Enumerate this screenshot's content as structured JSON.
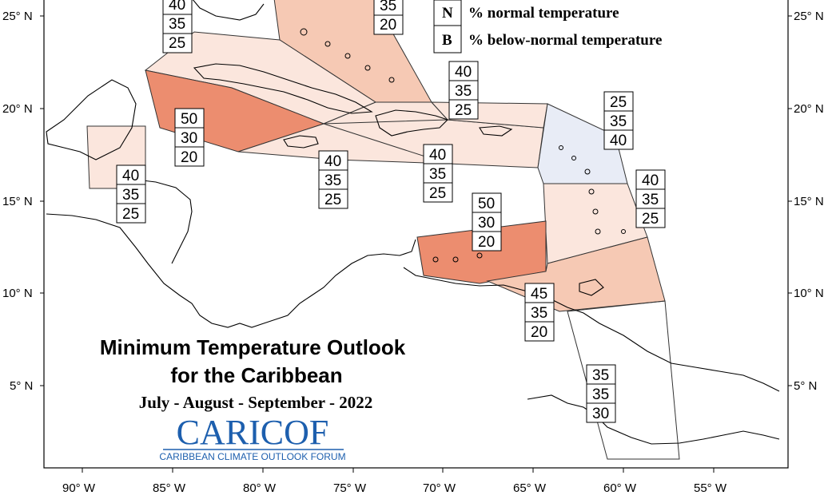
{
  "map": {
    "title_line1": "Minimum Temperature Outlook",
    "title_line2": "for the Caribbean",
    "subtitle": "July - August - September - 2022"
  },
  "legend": [
    {
      "key": "N",
      "label": "% normal temperature"
    },
    {
      "key": "B",
      "label": "% below-normal temperature"
    }
  ],
  "logo": {
    "name": "CARICOF",
    "tagline": "CARIBBEAN CLIMATE OUTLOOK FORUM"
  },
  "axes": {
    "lat_labels": [
      "25° N",
      "20° N",
      "15° N",
      "10° N",
      "5° N"
    ],
    "lon_labels": [
      "90° W",
      "85° W",
      "80° W",
      "75° W",
      "70° W",
      "65° W",
      "60° W",
      "55° W"
    ]
  },
  "colors": {
    "slightly_above": "#fbe6dd",
    "moderately_above": "#f6c9b4",
    "strongly_above": "#ec8d6f",
    "slightly_below": "#e8ecf6",
    "coast": "#000000",
    "logo": "#1d5fae"
  },
  "regions": [
    {
      "id": "bahamas",
      "values": [
        "",
        "35",
        "20"
      ]
    },
    {
      "id": "bahamas-west",
      "values": [
        "40",
        "35",
        "25"
      ]
    },
    {
      "id": "caribbean-west",
      "values": [
        "50",
        "30",
        "20"
      ]
    },
    {
      "id": "belize",
      "values": [
        "40",
        "35",
        "25"
      ]
    },
    {
      "id": "hispaniola-north",
      "values": [
        "40",
        "35",
        "25"
      ]
    },
    {
      "id": "jamaica",
      "values": [
        "40",
        "35",
        "25"
      ]
    },
    {
      "id": "puerto-rico",
      "values": [
        "40",
        "35",
        "25"
      ]
    },
    {
      "id": "leeward-islands",
      "values": [
        "25",
        "35",
        "40"
      ]
    },
    {
      "id": "windward-islands",
      "values": [
        "40",
        "35",
        "25"
      ]
    },
    {
      "id": "abc-islands",
      "values": [
        "50",
        "30",
        "20"
      ]
    },
    {
      "id": "trinidad",
      "values": [
        "45",
        "35",
        "20"
      ]
    },
    {
      "id": "guianas",
      "values": [
        "35",
        "35",
        "30"
      ]
    }
  ]
}
